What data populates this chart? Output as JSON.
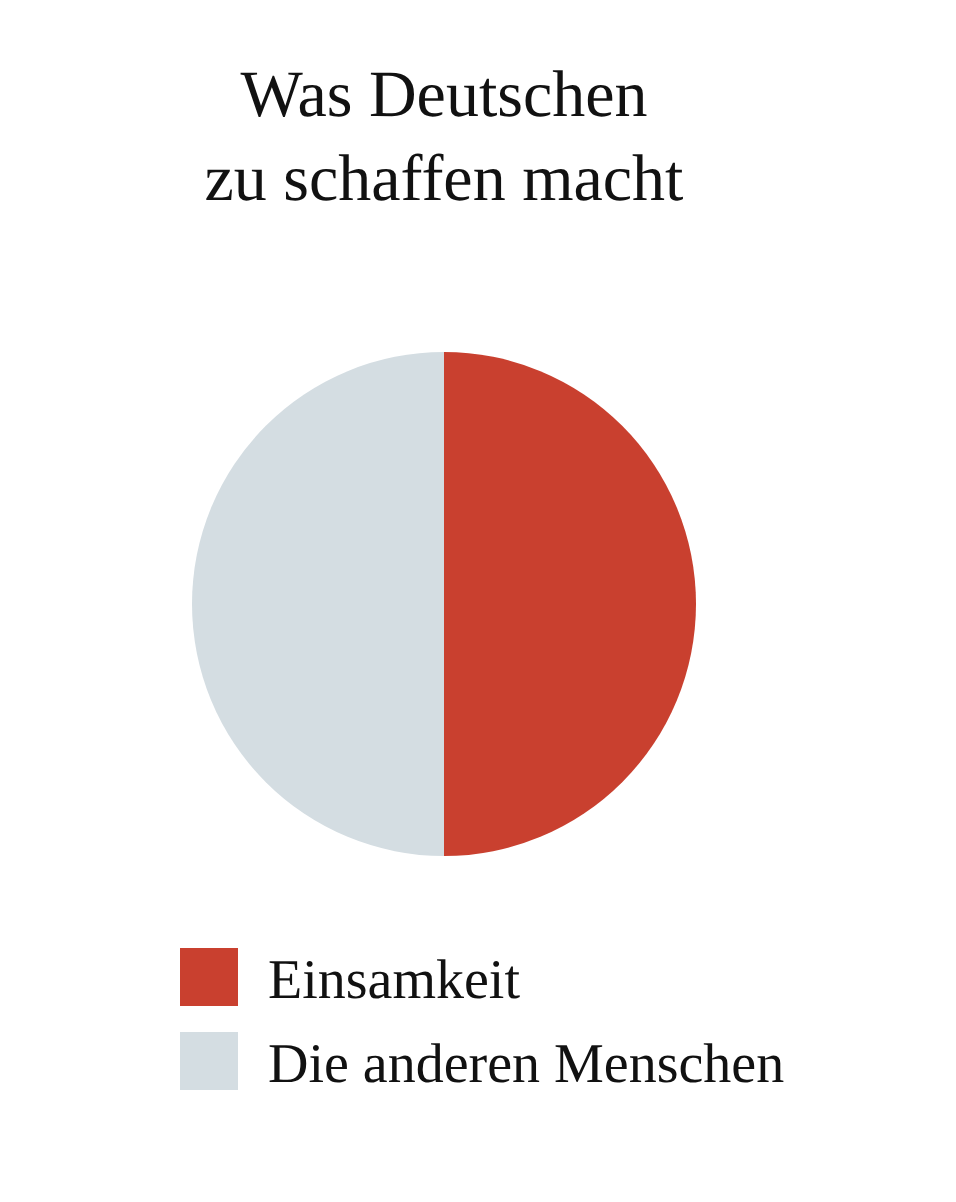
{
  "chart_data": {
    "type": "pie",
    "title": "Was Deutschen\nzu schaffen macht",
    "categories": [
      "Einsamkeit",
      "Die anderen Menschen"
    ],
    "values": [
      50,
      50
    ],
    "colors": [
      "#c9402f",
      "#d4dde2"
    ],
    "legend": "bottom"
  }
}
